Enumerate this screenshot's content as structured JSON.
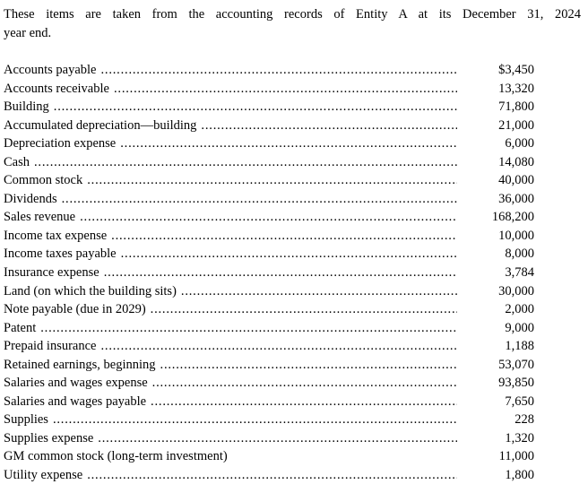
{
  "intro": {
    "line1": "These items are taken from the accounting records of Entity A at its December 31, 2024",
    "line2": "year end."
  },
  "accounts": {
    "items": [
      {
        "label": "Accounts payable",
        "amount": "$3,450",
        "leader": true
      },
      {
        "label": "Accounts receivable",
        "amount": "13,320",
        "leader": true
      },
      {
        "label": "Building",
        "amount": "71,800",
        "leader": true
      },
      {
        "label": "Accumulated depreciation—building",
        "amount": "21,000",
        "leader": true
      },
      {
        "label": "Depreciation expense",
        "amount": "6,000",
        "leader": true
      },
      {
        "label": "Cash",
        "amount": "14,080",
        "leader": true
      },
      {
        "label": "Common stock",
        "amount": "40,000",
        "leader": true
      },
      {
        "label": "Dividends",
        "amount": "36,000",
        "leader": true
      },
      {
        "label": "Sales revenue",
        "amount": "168,200",
        "leader": true
      },
      {
        "label": "Income tax expense",
        "amount": "10,000",
        "leader": true
      },
      {
        "label": "Income taxes payable",
        "amount": "8,000",
        "leader": true
      },
      {
        "label": "Insurance expense",
        "amount": "3,784",
        "leader": true
      },
      {
        "label": "Land (on which the building sits)",
        "amount": "30,000",
        "leader": true
      },
      {
        "label": "Note payable (due in 2029)",
        "amount": "2,000",
        "leader": true
      },
      {
        "label": "Patent",
        "amount": "9,000",
        "leader": true
      },
      {
        "label": "Prepaid insurance",
        "amount": "1,188",
        "leader": true
      },
      {
        "label": "Retained earnings, beginning",
        "amount": "53,070",
        "leader": true
      },
      {
        "label": "Salaries and wages expense",
        "amount": "93,850",
        "leader": true
      },
      {
        "label": "Salaries and wages payable",
        "amount": "7,650",
        "leader": true
      },
      {
        "label": "Supplies",
        "amount": "228",
        "leader": true
      },
      {
        "label": "Supplies expense",
        "amount": "1,320",
        "leader": true
      },
      {
        "label": "GM common stock (long-term investment)",
        "amount": "11,000",
        "leader": false
      },
      {
        "label": "Utility expense",
        "amount": "1,800",
        "leader": true
      }
    ]
  }
}
